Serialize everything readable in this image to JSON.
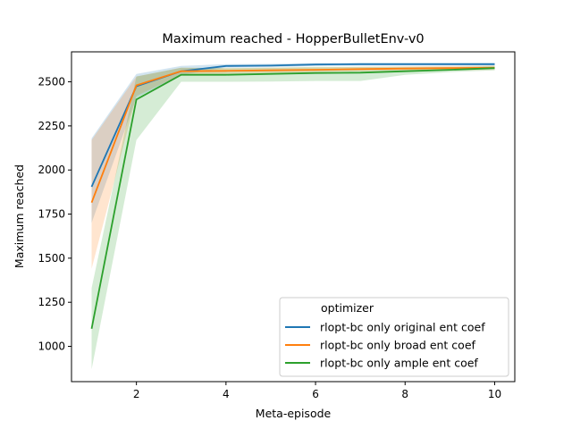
{
  "chart_data": {
    "type": "line",
    "title": "Maximum reached - HopperBulletEnv-v0",
    "xlabel": "Meta-episode",
    "ylabel": "Maximum reached",
    "xlim": [
      0.55,
      10.45
    ],
    "ylim": [
      800,
      2670
    ],
    "xticks": [
      2,
      4,
      6,
      8,
      10
    ],
    "yticks": [
      1000,
      1250,
      1500,
      1750,
      2000,
      2250,
      2500
    ],
    "grid": false,
    "legend": {
      "title": "optimizer",
      "position": "lower-right"
    },
    "x": [
      1,
      2,
      3,
      4,
      5,
      6,
      7,
      8,
      9,
      10
    ],
    "series": [
      {
        "name": "rlopt-bc only original ent coef",
        "color": "#1f77b4",
        "values": [
          1905,
          2475,
          2560,
          2590,
          2592,
          2598,
          2600,
          2600,
          2600,
          2600
        ],
        "lower": [
          1700,
          2410,
          2540,
          2580,
          2583,
          2590,
          2592,
          2592,
          2592,
          2592
        ],
        "upper": [
          2180,
          2545,
          2590,
          2600,
          2602,
          2606,
          2608,
          2608,
          2608,
          2608
        ]
      },
      {
        "name": "rlopt-bc only broad ent coef",
        "color": "#ff7f0e",
        "values": [
          1815,
          2480,
          2560,
          2562,
          2565,
          2568,
          2572,
          2575,
          2578,
          2580
        ],
        "lower": [
          1440,
          2420,
          2540,
          2545,
          2550,
          2555,
          2560,
          2562,
          2565,
          2568
        ],
        "upper": [
          2170,
          2530,
          2580,
          2578,
          2580,
          2582,
          2585,
          2588,
          2590,
          2592
        ]
      },
      {
        "name": "rlopt-bc only ample ent coef",
        "color": "#2ca02c",
        "values": [
          1100,
          2400,
          2540,
          2540,
          2545,
          2550,
          2552,
          2560,
          2568,
          2578
        ],
        "lower": [
          870,
          2170,
          2500,
          2500,
          2502,
          2505,
          2505,
          2540,
          2555,
          2565
        ],
        "upper": [
          1330,
          2530,
          2580,
          2578,
          2580,
          2585,
          2585,
          2585,
          2585,
          2590
        ]
      }
    ]
  }
}
